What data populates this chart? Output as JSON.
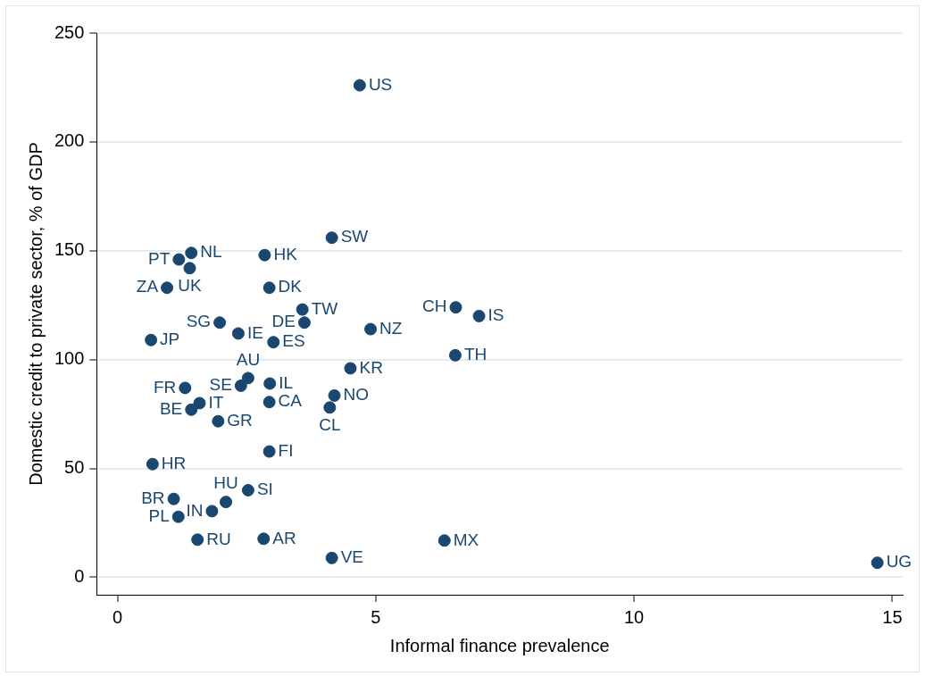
{
  "chart_data": {
    "type": "scatter",
    "xlabel": "Informal finance prevalence",
    "ylabel": "Domestic credit to private sector, % of GDP",
    "xlim": [
      -0.4,
      15.2
    ],
    "ylim": [
      -8,
      250
    ],
    "xticks": [
      0,
      5,
      10,
      15
    ],
    "yticks": [
      0,
      50,
      100,
      150,
      200,
      250
    ],
    "grid": "y",
    "marker": "circle",
    "legend": false,
    "series": [
      {
        "color": "#1a476f",
        "x": [
          4.69,
          4.15,
          1.19,
          1.43,
          1.4,
          2.85,
          0.96,
          2.94,
          1.98,
          3.58,
          3.62,
          4.9,
          0.65,
          2.34,
          3.02,
          6.55,
          7.0,
          6.54,
          4.51,
          2.53,
          2.39,
          2.95,
          1.31,
          1.59,
          1.43,
          2.94,
          4.2,
          4.11,
          1.95,
          2.94,
          0.68,
          2.53,
          1.09,
          2.1,
          1.83,
          1.18,
          1.55,
          2.83,
          4.15,
          6.33,
          14.71
        ],
        "values": [
          226,
          156,
          146,
          149,
          142,
          148,
          133,
          133,
          117,
          123,
          117,
          114,
          109,
          112,
          108,
          124,
          120,
          102,
          96,
          91.5,
          88,
          89,
          87,
          80,
          77,
          80.5,
          83.5,
          78,
          71.7,
          57.8,
          52,
          40,
          36,
          34.6,
          30.4,
          27.8,
          17.3,
          17.7,
          8.9,
          16.9,
          6.7
        ]
      }
    ],
    "annotations": [
      {
        "text": "US",
        "x": 4.69,
        "y": 226
      },
      {
        "text": "SW",
        "x": 4.15,
        "y": 156
      },
      {
        "text": "PT",
        "x": 1.19,
        "y": 146
      },
      {
        "text": "NL",
        "x": 1.43,
        "y": 149
      },
      {
        "text": "UK",
        "x": 1.4,
        "y": 142
      },
      {
        "text": "HK",
        "x": 2.85,
        "y": 148
      },
      {
        "text": "ZA",
        "x": 0.96,
        "y": 133
      },
      {
        "text": "DK",
        "x": 2.94,
        "y": 133
      },
      {
        "text": "SG",
        "x": 1.98,
        "y": 117
      },
      {
        "text": "TW",
        "x": 3.58,
        "y": 123
      },
      {
        "text": "DE",
        "x": 3.62,
        "y": 117
      },
      {
        "text": "NZ",
        "x": 4.9,
        "y": 114
      },
      {
        "text": "JP",
        "x": 0.65,
        "y": 109
      },
      {
        "text": "IE",
        "x": 2.34,
        "y": 112
      },
      {
        "text": "ES",
        "x": 3.02,
        "y": 108
      },
      {
        "text": "CH",
        "x": 6.55,
        "y": 124
      },
      {
        "text": "IS",
        "x": 7.0,
        "y": 120
      },
      {
        "text": "TH",
        "x": 6.54,
        "y": 102
      },
      {
        "text": "KR",
        "x": 4.51,
        "y": 96
      },
      {
        "text": "AU",
        "x": 2.53,
        "y": 91.5
      },
      {
        "text": "SE",
        "x": 2.39,
        "y": 88
      },
      {
        "text": "IL",
        "x": 2.95,
        "y": 89
      },
      {
        "text": "FR",
        "x": 1.31,
        "y": 87
      },
      {
        "text": "IT",
        "x": 1.59,
        "y": 80
      },
      {
        "text": "BE",
        "x": 1.43,
        "y": 77
      },
      {
        "text": "CA",
        "x": 2.94,
        "y": 80.5
      },
      {
        "text": "NO",
        "x": 4.2,
        "y": 83.5
      },
      {
        "text": "CL",
        "x": 4.11,
        "y": 78
      },
      {
        "text": "GR",
        "x": 1.95,
        "y": 71.7
      },
      {
        "text": "FI",
        "x": 2.94,
        "y": 57.8
      },
      {
        "text": "HR",
        "x": 0.68,
        "y": 52
      },
      {
        "text": "SI",
        "x": 2.53,
        "y": 40
      },
      {
        "text": "BR",
        "x": 1.09,
        "y": 36
      },
      {
        "text": "HU",
        "x": 2.1,
        "y": 34.6
      },
      {
        "text": "IN",
        "x": 1.83,
        "y": 30.4
      },
      {
        "text": "PL",
        "x": 1.18,
        "y": 27.8
      },
      {
        "text": "RU",
        "x": 1.55,
        "y": 17.3
      },
      {
        "text": "AR",
        "x": 2.83,
        "y": 17.7
      },
      {
        "text": "VE",
        "x": 4.15,
        "y": 8.9
      },
      {
        "text": "MX",
        "x": 6.33,
        "y": 16.9
      },
      {
        "text": "UG",
        "x": 14.71,
        "y": 6.7
      }
    ]
  }
}
